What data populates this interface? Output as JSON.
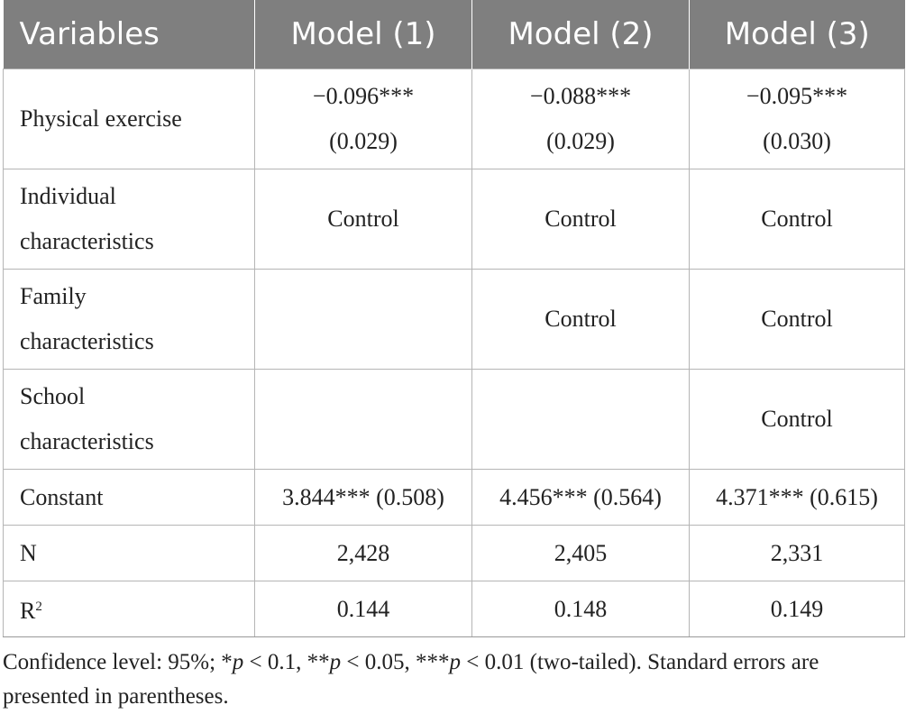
{
  "table": {
    "headers": [
      "Variables",
      "Model (1)",
      "Model (2)",
      "Model (3)"
    ],
    "rows": {
      "physical_exercise": {
        "label": "Physical exercise",
        "coef": [
          "−0.096***",
          "−0.088***",
          "−0.095***"
        ],
        "se": [
          "(0.029)",
          "(0.029)",
          "(0.030)"
        ]
      },
      "individual": {
        "label_line1": "Individual",
        "label_line2": "characteristics",
        "values": [
          "Control",
          "Control",
          "Control"
        ]
      },
      "family": {
        "label_line1": "Family",
        "label_line2": "characteristics",
        "values": [
          "",
          "Control",
          "Control"
        ]
      },
      "school": {
        "label_line1": "School",
        "label_line2": "characteristics",
        "values": [
          "",
          "",
          "Control"
        ]
      },
      "constant": {
        "label": "Constant",
        "values": [
          "3.844*** (0.508)",
          "4.456*** (0.564)",
          "4.371*** (0.615)"
        ]
      },
      "n": {
        "label": "N",
        "values": [
          "2,428",
          "2,405",
          "2,331"
        ]
      },
      "r2": {
        "label_base": "R",
        "label_sup": "2",
        "values": [
          "0.144",
          "0.148",
          "0.149"
        ]
      }
    }
  },
  "note": {
    "text_1": "Confidence level: 95%; *",
    "p1": "p",
    "text_2": " < 0.1, **",
    "p2": "p",
    "text_3": " < 0.05, ***",
    "p3": "p",
    "text_4": " < 0.01 (two-tailed). Standard errors are presented in parentheses."
  }
}
